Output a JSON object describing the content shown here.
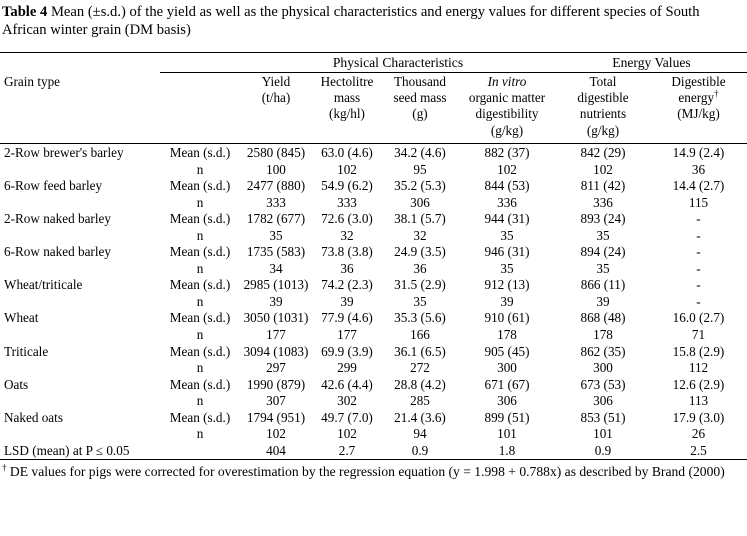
{
  "caption": {
    "bold": "Table 4",
    "text": " Mean (±s.d.) of the yield as well as the physical characteristics and energy values for different species of South African winter grain (DM basis)"
  },
  "table": {
    "group_physical": "Physical Characteristics",
    "group_energy": "Energy Values",
    "grain_type_header": "Grain type",
    "headers": {
      "yield": "Yield\n(t/ha)",
      "hectolitre": "Hectolitre\nmass\n(kg/hl)",
      "thousand": "Thousand\nseed mass\n(g)",
      "invitro_italic": "In vitro",
      "invitro_rest": "organic matter\ndigestibility\n(g/kg)",
      "tdn": "Total\ndigestible\nnutrients\n(g/kg)",
      "de_l1": "Digestible",
      "de_l2": "energy",
      "de_sup": "†",
      "de_l3": "(MJ/kg)"
    },
    "row_label_mean": "Mean (s.d.)",
    "row_label_n": "n",
    "rows": [
      {
        "grain": "2-Row brewer's barley",
        "mean": [
          "2580 (845)",
          "63.0 (4.6)",
          "34.2 (4.6)",
          "882 (37)",
          "842 (29)",
          "14.9 (2.4)"
        ],
        "n": [
          "100",
          "102",
          "95",
          "102",
          "102",
          "36"
        ]
      },
      {
        "grain": "6-Row feed barley",
        "mean": [
          "2477 (880)",
          "54.9 (6.2)",
          "35.2 (5.3)",
          "844 (53)",
          "811 (42)",
          "14.4 (2.7)"
        ],
        "n": [
          "333",
          "333",
          "306",
          "336",
          "336",
          "115"
        ]
      },
      {
        "grain": "2-Row naked barley",
        "mean": [
          "1782 (677)",
          "72.6 (3.0)",
          "38.1 (5.7)",
          "944 (31)",
          "893 (24)",
          "-"
        ],
        "n": [
          "35",
          "32",
          "32",
          "35",
          "35",
          "-"
        ]
      },
      {
        "grain": "6-Row naked barley",
        "mean": [
          "1735 (583)",
          "73.8 (3.8)",
          "24.9 (3.5)",
          "946 (31)",
          "894 (24)",
          "-"
        ],
        "n": [
          "34",
          "36",
          "36",
          "35",
          "35",
          "-"
        ]
      },
      {
        "grain": "Wheat/triticale",
        "mean": [
          "2985 (1013)",
          "74.2 (2.3)",
          "31.5 (2.9)",
          "912 (13)",
          "866 (11)",
          "-"
        ],
        "n": [
          "39",
          "39",
          "35",
          "39",
          "39",
          "-"
        ]
      },
      {
        "grain": "Wheat",
        "mean": [
          "3050 (1031)",
          "77.9 (4.6)",
          "35.3 (5.6)",
          "910 (61)",
          "868 (48)",
          "16.0 (2.7)"
        ],
        "n": [
          "177",
          "177",
          "166",
          "178",
          "178",
          "71"
        ]
      },
      {
        "grain": "Triticale",
        "mean": [
          "3094 (1083)",
          "69.9 (3.9)",
          "36.1 (6.5)",
          "905 (45)",
          "862 (35)",
          "15.8 (2.9)"
        ],
        "n": [
          "297",
          "299",
          "272",
          "300",
          "300",
          "112"
        ]
      },
      {
        "grain": "Oats",
        "mean": [
          "1990 (879)",
          "42.6 (4.4)",
          "28.8 (4.2)",
          "671 (67)",
          "673 (53)",
          "12.6 (2.9)"
        ],
        "n": [
          "307",
          "302",
          "285",
          "306",
          "306",
          "113"
        ]
      },
      {
        "grain": "Naked oats",
        "mean": [
          "1794 (951)",
          "49.7 (7.0)",
          "21.4 (3.6)",
          "899 (51)",
          "853 (51)",
          "17.9 (3.0)"
        ],
        "n": [
          "102",
          "102",
          "94",
          "101",
          "101",
          "26"
        ]
      }
    ],
    "lsd_row": {
      "label": "LSD (mean) at P ≤ 0.05",
      "values": [
        "404",
        "2.7",
        "0.9",
        "1.8",
        "0.9",
        "2.5"
      ]
    }
  },
  "footnote": {
    "sup": "†",
    "text": " DE values for pigs were corrected for overestimation by the regression equation (y = 1.998 + 0.788x) as described by Brand  (2000)"
  }
}
